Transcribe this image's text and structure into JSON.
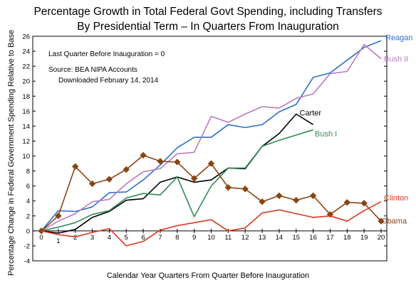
{
  "chart_data": {
    "type": "line",
    "title": [
      "Percentage Growth in Total Federal Govt Spending, including Transfers",
      "By Presidential Term – In Quarters From Inauguration"
    ],
    "xlabel": "Calendar Year Quarters From Quarter Before Inauguration",
    "ylabel": "Percentage Change in Federal Government Spending Relative to Base",
    "xlim": [
      0,
      20
    ],
    "ylim": [
      -4,
      26
    ],
    "x_ticks": [
      0,
      1,
      2,
      3,
      4,
      5,
      6,
      7,
      8,
      9,
      10,
      11,
      12,
      13,
      14,
      15,
      16,
      17,
      18,
      19,
      20
    ],
    "y_ticks": [
      -4,
      -2,
      0,
      2,
      4,
      6,
      8,
      10,
      12,
      14,
      16,
      18,
      20,
      22,
      24,
      26
    ],
    "grid": false,
    "annotations": [
      "Last Quarter Before Inauguration = 0",
      "Source:  BEA NIPA Accounts",
      "Downloaded February 14, 2014"
    ],
    "series": [
      {
        "name": "Reagan",
        "color": "#2f6fcc",
        "marker": "none",
        "x": [
          0,
          1,
          2,
          3,
          4,
          5,
          6,
          7,
          8,
          9,
          10,
          11,
          12,
          13,
          14,
          15,
          16,
          17,
          18,
          19,
          20
        ],
        "y": [
          0,
          2.7,
          2.6,
          3.2,
          5.1,
          5.2,
          6.8,
          8.8,
          11.1,
          12.5,
          12.5,
          14.2,
          13.8,
          14.2,
          15.9,
          16.9,
          20.5,
          21.1,
          22.8,
          24.5,
          25.4
        ]
      },
      {
        "name": "Bush II",
        "color": "#b97bc0",
        "marker": "none",
        "x": [
          0,
          1,
          2,
          3,
          4,
          5,
          6,
          7,
          8,
          9,
          10,
          11,
          12,
          13,
          14,
          15,
          16,
          17,
          18,
          19,
          20
        ],
        "y": [
          0,
          1.3,
          2.3,
          3.9,
          4.2,
          6.3,
          7.9,
          8.3,
          10.3,
          10.5,
          15.3,
          14.5,
          15.6,
          16.6,
          16.4,
          17.7,
          18.3,
          21.0,
          21.3,
          24.9,
          23.0
        ]
      },
      {
        "name": "Carter",
        "color": "#000000",
        "marker": "none",
        "x": [
          0,
          1,
          2,
          3,
          4,
          5,
          6,
          7,
          8,
          9,
          10,
          11,
          12,
          13,
          14,
          15,
          16
        ],
        "y": [
          0,
          -0.3,
          0.2,
          1.8,
          2.6,
          4.1,
          4.3,
          6.5,
          7.2,
          6.5,
          6.8,
          8.4,
          8.3,
          11.3,
          13.0,
          15.6,
          14.2
        ]
      },
      {
        "name": "Bush I",
        "color": "#2e8b57",
        "marker": "none",
        "x": [
          0,
          1,
          2,
          3,
          4,
          5,
          6,
          7,
          8,
          9,
          10,
          11,
          12,
          13,
          14,
          15,
          16
        ],
        "y": [
          0,
          0.5,
          1.1,
          2.2,
          2.7,
          4.4,
          5.0,
          4.8,
          7.2,
          1.9,
          6.0,
          8.4,
          8.4,
          11.3,
          12.1,
          12.8,
          13.5
        ]
      },
      {
        "name": "Obama",
        "color": "#8b4513",
        "marker": "diamond",
        "x": [
          0,
          1,
          2,
          3,
          4,
          5,
          6,
          7,
          8,
          9,
          10,
          11,
          12,
          13,
          14,
          15,
          16,
          17,
          18,
          19,
          20
        ],
        "y": [
          0,
          2.0,
          8.6,
          6.3,
          6.9,
          8.2,
          10.1,
          9.3,
          9.2,
          7.0,
          9.0,
          5.8,
          5.6,
          3.9,
          4.7,
          4.1,
          4.7,
          2.2,
          3.8,
          3.7,
          1.3
        ]
      },
      {
        "name": "Clinton",
        "color": "#d93820",
        "marker": "none",
        "x": [
          0,
          1,
          2,
          3,
          4,
          5,
          6,
          7,
          8,
          9,
          10,
          11,
          12,
          13,
          14,
          15,
          16,
          17,
          18,
          19,
          20
        ],
        "y": [
          0,
          -0.5,
          -0.8,
          -0.2,
          0.3,
          -2.0,
          -1.4,
          0.1,
          0.7,
          1.1,
          1.5,
          0.0,
          0.4,
          2.4,
          2.8,
          2.3,
          1.8,
          2.0,
          1.3,
          2.7,
          3.9
        ]
      }
    ]
  }
}
